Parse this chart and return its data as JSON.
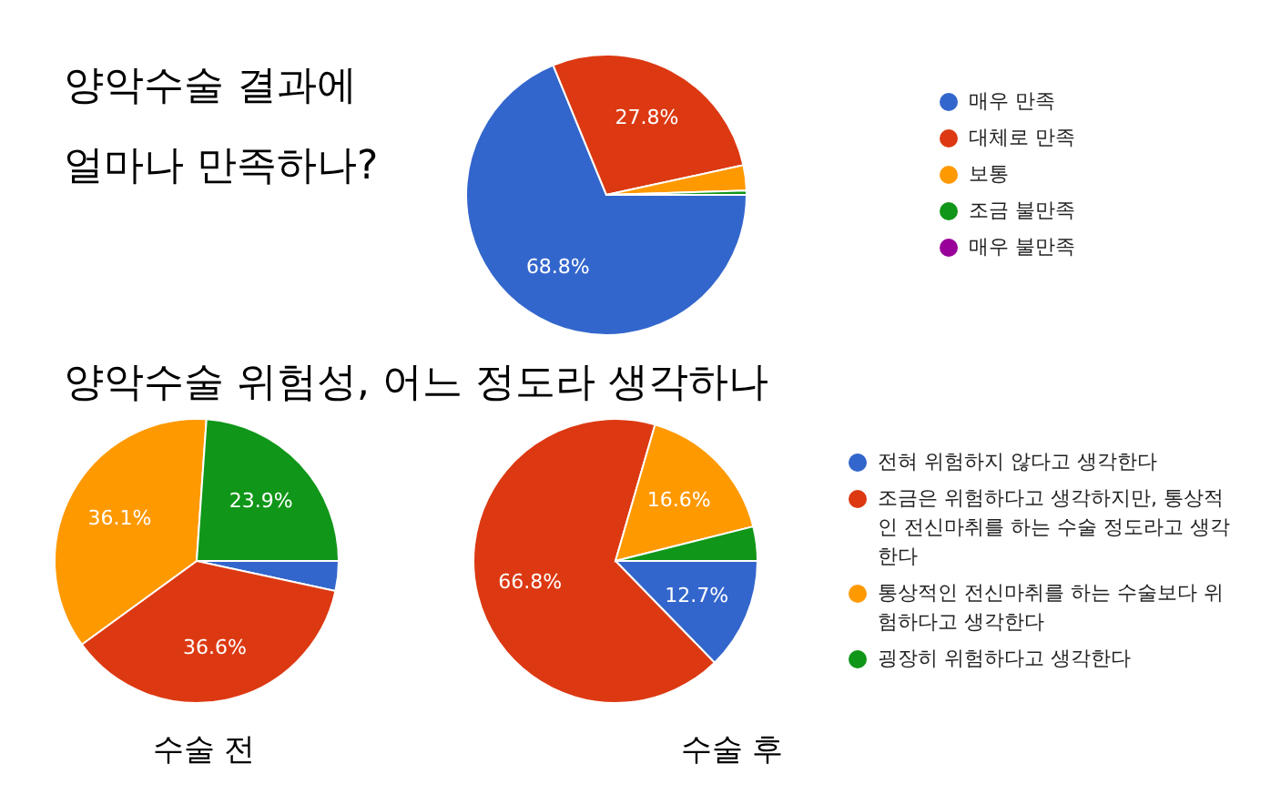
{
  "chart_data": [
    {
      "type": "pie",
      "title": "양악수술 결과에\n얼마나 만족하나?",
      "categories": [
        "매우 만족",
        "대체로 만족",
        "보통",
        "조금 불만족",
        "매우 불만족"
      ],
      "values": [
        68.8,
        27.8,
        2.9,
        0.5,
        0
      ],
      "colors": [
        "#3366cc",
        "#dc3912",
        "#ff9900",
        "#109618",
        "#990099"
      ],
      "value_labels": [
        "68.8%",
        "27.8%",
        null,
        null,
        null
      ],
      "legend": "right"
    },
    {
      "type": "pie",
      "title": "양악수술 위험성, 어느 정도라 생각하나",
      "xlabel": "수술 전",
      "categories": [
        null,
        null,
        null,
        null
      ],
      "values": [
        3.4,
        36.6,
        36.1,
        23.9
      ],
      "colors": [
        "#3366cc",
        "#dc3912",
        "#ff9900",
        "#109618"
      ],
      "value_labels": [
        null,
        "36.6%",
        "36.1%",
        "23.9%"
      ],
      "legend": false
    },
    {
      "type": "pie",
      "xlabel": "수술 후",
      "categories": [
        "전혀 위험하지 않다고 생각한다",
        "조금은 위험하다고 생각하지만, 통상적인 전신마취를 하는 수술 정도라고 생각한다",
        "통상적인 전신마취를 하는 수술보다 위험하다고 생각한다",
        "굉장히 위험하다고 생각한다"
      ],
      "values": [
        12.7,
        66.8,
        16.6,
        3.9
      ],
      "colors": [
        "#3366cc",
        "#dc3912",
        "#ff9900",
        "#109618"
      ],
      "value_labels": [
        "12.7%",
        "66.8%",
        "16.6%",
        null
      ],
      "legend": "right"
    }
  ]
}
